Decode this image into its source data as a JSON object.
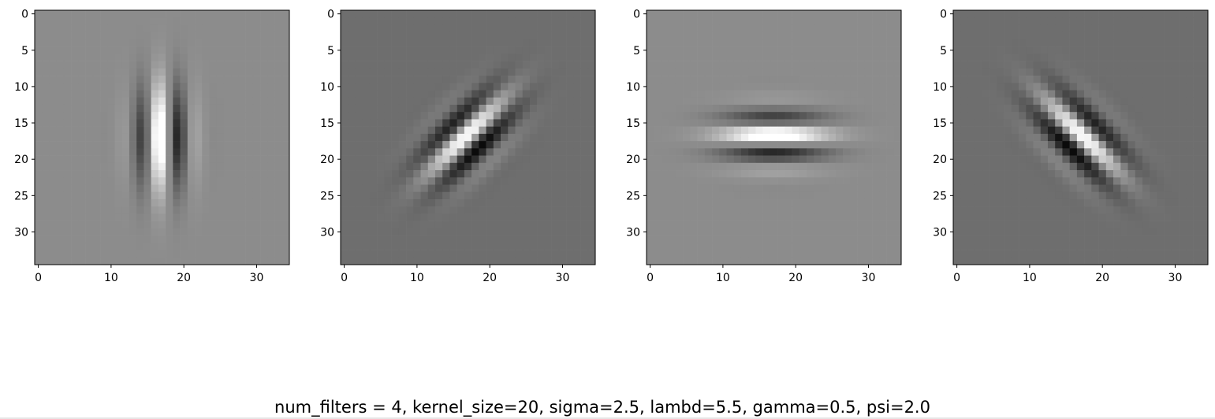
{
  "caption": "num_filters = 4, kernel_size=20, sigma=2.5, lambd=5.5, gamma=0.5, psi=2.0",
  "chart_data": [
    {
      "type": "heatmap",
      "image_size": 35,
      "theta_deg": 0,
      "background": "#8c8c8c",
      "xticks": [
        0,
        10,
        20,
        30
      ],
      "yticks": [
        0,
        5,
        10,
        15,
        20,
        25,
        30
      ],
      "xlim": [
        -0.5,
        34.5
      ],
      "ylim": [
        34.5,
        -0.5
      ],
      "grid": false,
      "colormap": "gray"
    },
    {
      "type": "heatmap",
      "image_size": 35,
      "theta_deg": 45,
      "background": "#6e6e6e",
      "xticks": [
        0,
        10,
        20,
        30
      ],
      "yticks": [
        0,
        5,
        10,
        15,
        20,
        25,
        30
      ],
      "xlim": [
        -0.5,
        34.5
      ],
      "ylim": [
        34.5,
        -0.5
      ],
      "grid": false,
      "colormap": "gray"
    },
    {
      "type": "heatmap",
      "image_size": 35,
      "theta_deg": 90,
      "background": "#8c8c8c",
      "xticks": [
        0,
        10,
        20,
        30
      ],
      "yticks": [
        0,
        5,
        10,
        15,
        20,
        25,
        30
      ],
      "xlim": [
        -0.5,
        34.5
      ],
      "ylim": [
        34.5,
        -0.5
      ],
      "grid": false,
      "colormap": "gray"
    },
    {
      "type": "heatmap",
      "image_size": 35,
      "theta_deg": 135,
      "background": "#6e6e6e",
      "xticks": [
        0,
        10,
        20,
        30
      ],
      "yticks": [
        0,
        5,
        10,
        15,
        20,
        25,
        30
      ],
      "xlim": [
        -0.5,
        34.5
      ],
      "ylim": [
        34.5,
        -0.5
      ],
      "grid": false,
      "colormap": "gray"
    }
  ]
}
